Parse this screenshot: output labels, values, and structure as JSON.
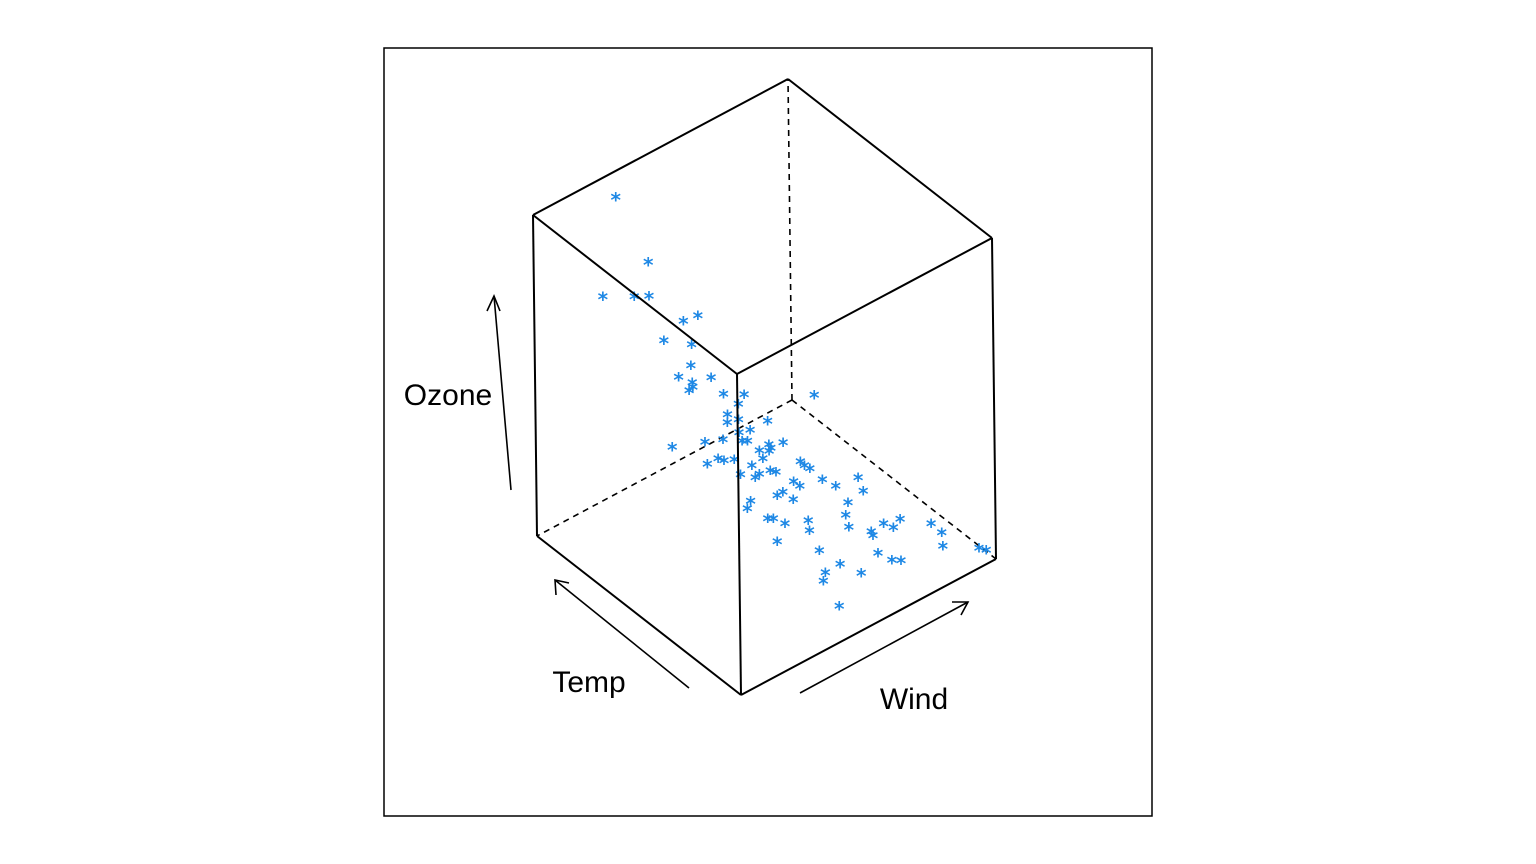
{
  "chart_data": {
    "type": "scatter",
    "projection": "3d-box",
    "xlabel": "Wind",
    "ylabel": "Temp",
    "zlabel": "Ozone",
    "marker": "*",
    "color": "#1E88E5",
    "points": [
      [
        0.28,
        0.86,
        0.69
      ],
      [
        0.07,
        0.52,
        0.95
      ],
      [
        0.26,
        0.92,
        0.98
      ],
      [
        0.22,
        0.47,
        0.85
      ],
      [
        0.31,
        0.36,
        0.62
      ],
      [
        0.36,
        0.89,
        0.75
      ],
      [
        0.33,
        0.47,
        0.47
      ],
      [
        0.27,
        0.18,
        0.56
      ],
      [
        0.24,
        0.3,
        0.65
      ],
      [
        0.26,
        0.55,
        0.57
      ],
      [
        0.36,
        0.72,
        0.65
      ],
      [
        0.34,
        0.5,
        0.54
      ],
      [
        0.34,
        0.66,
        0.55
      ],
      [
        0.14,
        0.33,
        0.49
      ],
      [
        0.37,
        0.83,
        0.53
      ],
      [
        0.4,
        0.36,
        0.5
      ],
      [
        0.46,
        0.23,
        0.39
      ],
      [
        0.46,
        0.58,
        0.37
      ],
      [
        0.27,
        0.2,
        0.33
      ],
      [
        0.3,
        0.37,
        0.37
      ],
      [
        0.29,
        0.18,
        0.26
      ],
      [
        0.33,
        0.36,
        0.28
      ],
      [
        0.4,
        0.35,
        0.35
      ],
      [
        0.41,
        0.62,
        0.25
      ],
      [
        0.45,
        0.81,
        0.35
      ],
      [
        0.41,
        0.81,
        0.41
      ],
      [
        0.51,
        0.87,
        0.32
      ],
      [
        0.56,
        0.84,
        0.33
      ],
      [
        0.56,
        0.65,
        0.26
      ],
      [
        0.52,
        0.68,
        0.17
      ],
      [
        0.46,
        0.48,
        0.25
      ],
      [
        0.48,
        0.39,
        0.23
      ],
      [
        0.52,
        0.39,
        0.19
      ],
      [
        0.53,
        0.33,
        0.15
      ],
      [
        0.55,
        0.35,
        0.1
      ],
      [
        0.52,
        0.49,
        0.08
      ],
      [
        0.56,
        0.52,
        0.12
      ],
      [
        0.6,
        0.64,
        0.16
      ],
      [
        0.63,
        0.85,
        0.18
      ],
      [
        0.46,
        0.91,
        0.12
      ],
      [
        0.49,
        0.58,
        0.08
      ],
      [
        0.46,
        0.17,
        0.07
      ],
      [
        0.45,
        0.08,
        0.04
      ],
      [
        0.5,
        0.21,
        0.06
      ],
      [
        0.55,
        0.2,
        0.07
      ],
      [
        0.58,
        0.34,
        0.03
      ],
      [
        0.6,
        0.16,
        0.04
      ],
      [
        0.58,
        0.9,
        0.09
      ],
      [
        0.62,
        0.72,
        0.09
      ],
      [
        0.65,
        0.82,
        0.13
      ],
      [
        0.67,
        0.83,
        0.09
      ],
      [
        0.68,
        0.56,
        0.08
      ],
      [
        0.7,
        0.36,
        0.08
      ],
      [
        0.72,
        0.26,
        0.07
      ],
      [
        0.72,
        0.16,
        0.03
      ],
      [
        0.76,
        0.55,
        0.07
      ],
      [
        0.78,
        0.45,
        0.04
      ],
      [
        0.77,
        0.65,
        0.06
      ],
      [
        0.8,
        0.3,
        0.04
      ],
      [
        0.82,
        0.56,
        0.02
      ],
      [
        0.83,
        0.29,
        0.02
      ],
      [
        0.69,
        0.19,
        0.05
      ],
      [
        0.74,
        0.14,
        0.03
      ],
      [
        0.84,
        0.45,
        0.05
      ],
      [
        0.86,
        0.5,
        0.06
      ],
      [
        0.75,
        0.29,
        0.03
      ],
      [
        0.93,
        0.23,
        0.02
      ],
      [
        0.88,
        0.32,
        0.01
      ],
      [
        0.75,
        0.8,
        0.06
      ],
      [
        0.73,
        0.88,
        0.04
      ],
      [
        0.79,
        0.78,
        0.06
      ],
      [
        0.88,
        0.11,
        0.03
      ],
      [
        0.9,
        0.14,
        0.05
      ],
      [
        0.95,
        0.02,
        0.04
      ],
      [
        0.97,
        0.01,
        0.03
      ],
      [
        0.89,
        0.75,
        0.18
      ],
      [
        0.58,
        0.55,
        0.17
      ],
      [
        0.64,
        0.54,
        0.12
      ],
      [
        0.68,
        0.32,
        0.07
      ],
      [
        0.43,
        0.62,
        0.3
      ],
      [
        0.42,
        0.45,
        0.27
      ],
      [
        0.37,
        0.54,
        0.3
      ],
      [
        0.62,
        0.48,
        0.22
      ],
      [
        0.54,
        0.58,
        0.24
      ],
      [
        0.4,
        0.28,
        0.22
      ],
      [
        0.47,
        0.82,
        0.48
      ],
      [
        0.2,
        0.1,
        0.62
      ],
      [
        0.15,
        0.85,
        0.75
      ]
    ]
  }
}
